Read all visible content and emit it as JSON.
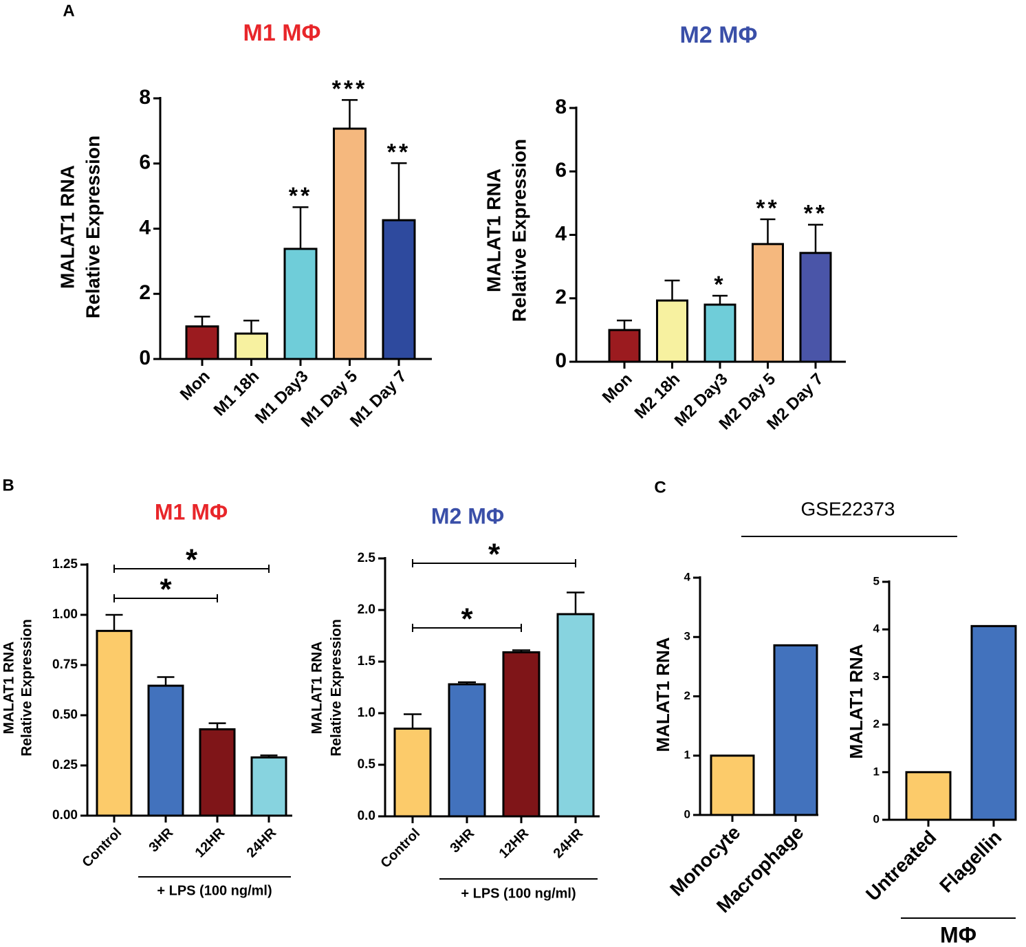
{
  "figure": {
    "panel_labels": [
      "A",
      "B",
      "C"
    ],
    "dataset_title": "GSE22373"
  },
  "chart_data": [
    {
      "type": "bar",
      "title": "M1 MΦ",
      "title_color": "#e8262a",
      "ylabel": [
        "MALAT1 RNA",
        "Relative Expression"
      ],
      "categories": [
        "Mon",
        "M1 18h",
        "M1 Day3",
        "M1 Day 5",
        "M1 Day 7"
      ],
      "values": [
        1.0,
        0.78,
        3.38,
        7.07,
        4.26
      ],
      "errors": [
        0.3,
        0.4,
        1.28,
        0.88,
        1.75
      ],
      "colors": [
        "#9b1b1f",
        "#f7f1a0",
        "#6fcdd9",
        "#f5b87e",
        "#2e4a9e"
      ],
      "annotations": [
        null,
        null,
        "**",
        "***",
        "**"
      ],
      "ylim": [
        0,
        8
      ],
      "yticks": [
        0,
        2,
        4,
        6,
        8
      ]
    },
    {
      "type": "bar",
      "title": "M2 MΦ",
      "title_color": "#3a4fa8",
      "ylabel": [
        "MALAT1 RNA",
        "Relative Expression"
      ],
      "categories": [
        "Mon",
        "M2 18h",
        "M2 Day3",
        "M2 Day 5",
        "M2 Day 7"
      ],
      "values": [
        1.0,
        1.93,
        1.8,
        3.71,
        3.43
      ],
      "errors": [
        0.3,
        0.63,
        0.28,
        0.78,
        0.89
      ],
      "colors": [
        "#9b1b1f",
        "#f7f1a0",
        "#6fcdd9",
        "#f5b87e",
        "#4a55a8"
      ],
      "annotations": [
        null,
        null,
        "*",
        "**",
        "**"
      ],
      "ylim": [
        0,
        8
      ],
      "yticks": [
        0,
        2,
        4,
        6,
        8
      ]
    },
    {
      "type": "bar",
      "title": "M1 MΦ",
      "title_color": "#e8262a",
      "ylabel": [
        "MALAT1 RNA",
        "Relative Expression"
      ],
      "categories": [
        "Control",
        "3HR",
        "12HR",
        "24HR"
      ],
      "values": [
        0.92,
        0.647,
        0.43,
        0.29
      ],
      "errors": [
        0.08,
        0.043,
        0.03,
        0.01
      ],
      "colors": [
        "#fccb6a",
        "#4272bd",
        "#7f1518",
        "#87d3df"
      ],
      "comparisons": [
        {
          "from": 0,
          "to": 3,
          "label": "*"
        },
        {
          "from": 0,
          "to": 2,
          "label": "*"
        }
      ],
      "group_label": {
        "text": "+ LPS (100 ng/ml)",
        "from": 1,
        "to": 3
      },
      "ylim": [
        0,
        1.25
      ],
      "yticks": [
        {
          "value": 0,
          "label": "0.00"
        },
        {
          "value": 0.25,
          "label": "0.25"
        },
        {
          "value": 0.5,
          "label": "0.50"
        },
        {
          "value": 0.75,
          "label": "0.75"
        },
        {
          "value": 1,
          "label": "1.00"
        },
        {
          "value": 1.25,
          "label": "1.25"
        }
      ]
    },
    {
      "type": "bar",
      "title": "M2 MΦ",
      "title_color": "#3a4fa8",
      "ylabel": [
        "MALAT1 RNA",
        "Relative Expression"
      ],
      "categories": [
        "Control",
        "3HR",
        "12HR",
        "24HR"
      ],
      "values": [
        0.85,
        1.28,
        1.59,
        1.96
      ],
      "errors": [
        0.14,
        0.02,
        0.02,
        0.21
      ],
      "colors": [
        "#fccb6a",
        "#4272bd",
        "#7f1518",
        "#87d3df"
      ],
      "comparisons": [
        {
          "from": 0,
          "to": 3,
          "label": "*"
        },
        {
          "from": 0,
          "to": 2,
          "label": "*"
        }
      ],
      "group_label": {
        "text": "+ LPS (100 ng/ml)",
        "from": 1,
        "to": 3
      },
      "ylim": [
        0,
        2.5
      ],
      "yticks": [
        {
          "value": 0,
          "label": "0.0"
        },
        {
          "value": 0.5,
          "label": "0.5"
        },
        {
          "value": 1,
          "label": "1.0"
        },
        {
          "value": 1.5,
          "label": "1.5"
        },
        {
          "value": 2,
          "label": "2.0"
        },
        {
          "value": 2.5,
          "label": "2.5"
        }
      ]
    },
    {
      "type": "bar",
      "ylabel": [
        "MALAT1 RNA"
      ],
      "categories": [
        "Monocyte",
        "Macrophage"
      ],
      "values": [
        1.0,
        2.86
      ],
      "colors": [
        "#fccb6a",
        "#4272bd"
      ],
      "ylim": [
        0,
        4
      ],
      "yticks": [
        0,
        1,
        2,
        3,
        4
      ]
    },
    {
      "type": "bar",
      "ylabel": [
        "MALAT1 RNA"
      ],
      "categories": [
        "Untreated",
        "Flagellin"
      ],
      "values": [
        1.0,
        4.07
      ],
      "colors": [
        "#fccb6a",
        "#4272bd"
      ],
      "group_label": {
        "text": "MΦ",
        "from": 0,
        "to": 1
      },
      "ylim": [
        0,
        5
      ],
      "yticks": [
        0,
        1,
        2,
        3,
        4,
        5
      ]
    }
  ]
}
